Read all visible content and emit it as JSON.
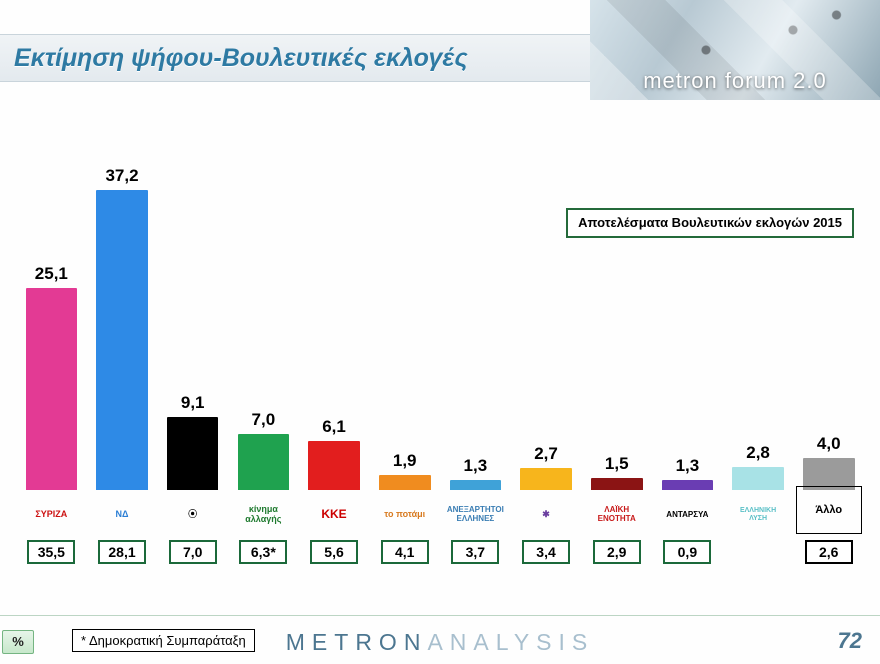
{
  "title": "Εκτίμηση ψήφου-Βουλευτικές εκλογές",
  "header_brand": "metron forum 2.0",
  "legend_note": "Αποτελέσματα Βουλευτικών εκλογών\n2015",
  "footnote": "* Δημοκρατική Συμπαράταξη",
  "pct_tab": "%",
  "page_number": "72",
  "footer_brand_a": "METRON",
  "footer_brand_b": "ANALYSIS",
  "chart": {
    "type": "bar",
    "y_max": 37.2,
    "value_fontsize": 17,
    "value_fontweight": "700",
    "prev_box_border": "#1b693a",
    "background": "#fefefe",
    "bars": [
      {
        "party": "ΣΥΡΙΖΑ",
        "value": "25,1",
        "num": 25.1,
        "color": "#e33a94",
        "prev": "35,5",
        "logo_key": "syriza"
      },
      {
        "party": "ΝΔ",
        "value": "37,2",
        "num": 37.2,
        "color": "#2e8ae6",
        "prev": "28,1",
        "logo_key": "nd"
      },
      {
        "party": "Χρυσή Αυγή",
        "value": "9,1",
        "num": 9.1,
        "color": "#000000",
        "prev": "7,0",
        "logo_key": "xa"
      },
      {
        "party": "Κίνημα Αλλαγής",
        "value": "7,0",
        "num": 7.0,
        "color": "#1fa24f",
        "prev": "6,3*",
        "logo_key": "kinal"
      },
      {
        "party": "ΚΚΕ",
        "value": "6,1",
        "num": 6.1,
        "color": "#e21e1e",
        "prev": "5,6",
        "logo_key": "kke"
      },
      {
        "party": "Το Ποτάμι",
        "value": "1,9",
        "num": 1.9,
        "color": "#f08c1f",
        "prev": "4,1",
        "logo_key": "potami"
      },
      {
        "party": "ΑΝΕΛ",
        "value": "1,3",
        "num": 1.3,
        "color": "#3fa2d8",
        "prev": "3,7",
        "logo_key": "anel"
      },
      {
        "party": "Ένωση Κεντρώων",
        "value": "2,7",
        "num": 2.7,
        "color": "#f7b51c",
        "prev": "3,4",
        "logo_key": "ek"
      },
      {
        "party": "Λαϊκή Ενότητα",
        "value": "1,5",
        "num": 1.5,
        "color": "#8b1414",
        "prev": "2,9",
        "logo_key": "lae"
      },
      {
        "party": "ΑΝΤΑΡΣΥΑ",
        "value": "1,3",
        "num": 1.3,
        "color": "#6a3db3",
        "prev": "0,9",
        "logo_key": "antarsya"
      },
      {
        "party": "Ελληνική Λύση",
        "value": "2,8",
        "num": 2.8,
        "color": "#a8e2e6",
        "prev": "",
        "logo_key": "el"
      },
      {
        "party": "Άλλο",
        "value": "4,0",
        "num": 4.0,
        "color": "#9b9b9b",
        "prev": "2,6",
        "logo_key": "allo"
      }
    ]
  },
  "logos": {
    "syriza": {
      "text": "ΣΥΡΙΖΑ",
      "cls": "logo-syriza"
    },
    "nd": {
      "text": "ΝΔ",
      "cls": "logo-nd"
    },
    "xa": {
      "text": "⦿",
      "cls": "logo-xa"
    },
    "kinal": {
      "text": "κίνημα\nαλλαγής",
      "cls": "logo-kinal"
    },
    "kke": {
      "text": "ΚΚΕ",
      "cls": "logo-kke"
    },
    "potami": {
      "text": "το ποτάμι",
      "cls": "logo-potami"
    },
    "anel": {
      "text": "ΑΝΕΞΑΡΤΗΤΟΙ\nΕΛΛΗΝΕΣ",
      "cls": "logo-anel"
    },
    "ek": {
      "text": "✱",
      "cls": "logo-ek"
    },
    "lae": {
      "text": "ΛΑΪΚΗ\nΕΝΟΤΗΤΑ",
      "cls": "logo-lae"
    },
    "antarsya": {
      "text": "ΑΝΤΑΡΣΥΑ",
      "cls": "logo-antarsya"
    },
    "el": {
      "text": "ΕΛΛΗΝΙΚΗ\nΛΥΣΗ",
      "cls": "logo-el"
    },
    "allo": {
      "text": "Άλλο",
      "cls": "logo-allo"
    }
  }
}
